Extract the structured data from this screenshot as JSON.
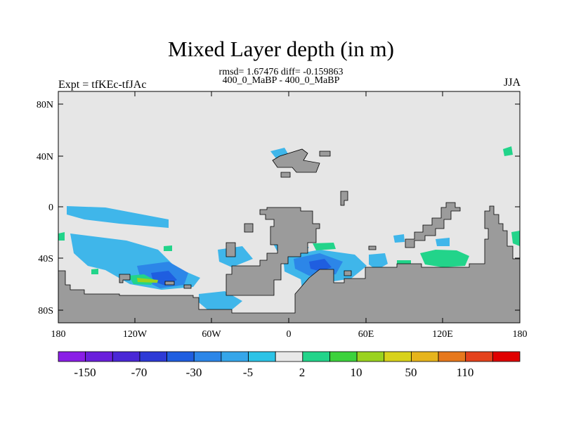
{
  "title": "Mixed Layer depth (in m)",
  "stats": "rmsd= 1.67476 diff= -0.159863",
  "subtitle": "400_0_MaBP - 400_0_MaBP",
  "left_label": "Expt = tfKEc-tfJAc",
  "right_label": "JJA",
  "lat_ticks": [
    "80N",
    "40N",
    "0",
    "40S",
    "80S"
  ],
  "lon_ticks": [
    "180",
    "120W",
    "60W",
    "0",
    "60E",
    "120E",
    "180"
  ],
  "colorbar": {
    "colors": [
      "#8a1ee6",
      "#6a20dc",
      "#4a28d6",
      "#2d3ad6",
      "#1f5ee0",
      "#2c86e8",
      "#35a6ea",
      "#2cc3e6",
      "#e8e8e8",
      "#22d48a",
      "#3cd23c",
      "#9ad21e",
      "#d8d21a",
      "#e6b41c",
      "#e6781c",
      "#e4421c",
      "#e00000"
    ],
    "labels": [
      "-150",
      "-70",
      "-30",
      "-5",
      "2",
      "10",
      "50",
      "110"
    ]
  },
  "legend_colors": {
    "ocean": "#e6e6e6",
    "land": "#9b9b9b",
    "coast": "#000000"
  }
}
